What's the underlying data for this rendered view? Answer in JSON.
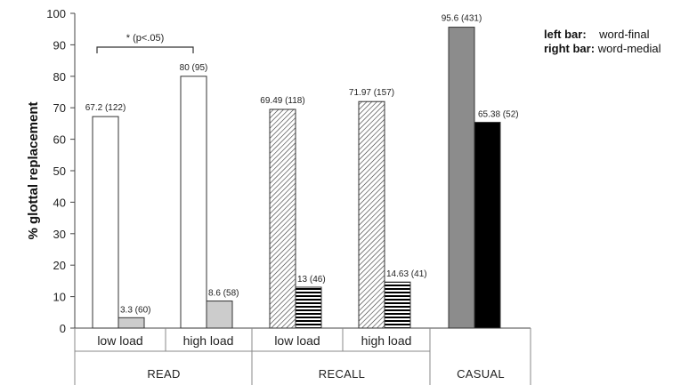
{
  "chart_data": {
    "type": "bar",
    "ylabel": "% glottal replacement",
    "ylim": [
      0,
      100
    ],
    "yticks": [
      0,
      10,
      20,
      30,
      40,
      50,
      60,
      70,
      80,
      90,
      100
    ],
    "groups": [
      {
        "label": "READ",
        "subgroups": [
          "low load",
          "high load"
        ]
      },
      {
        "label": "RECALL",
        "subgroups": [
          "low load",
          "high load"
        ]
      },
      {
        "label": "CASUAL",
        "subgroups": []
      }
    ],
    "categories": [
      "READ low load",
      "READ high load",
      "RECALL low load",
      "RECALL high load",
      "CASUAL"
    ],
    "series": [
      {
        "name": "word-final",
        "values": [
          67.2,
          80,
          69.49,
          71.97,
          95.6
        ],
        "labels": [
          "67.2 (122)",
          "80 (95)",
          "69.49 (118)",
          "71.97 (157)",
          "95.6 (431)"
        ]
      },
      {
        "name": "word-medial",
        "values": [
          3.3,
          8.6,
          13,
          14.63,
          65.38
        ],
        "labels": [
          "3.3 (60)",
          "8.6 (58)",
          "13 (46)",
          "14.63 (41)",
          "65.38 (52)"
        ]
      }
    ],
    "fills": {
      "READ": {
        "left": "#ffffff",
        "right": "#cccccc"
      },
      "RECALL": {
        "left": "diagonal-hatch",
        "right": "horizontal-stripes"
      },
      "CASUAL": {
        "left": "#8c8c8c",
        "right": "#000000"
      }
    },
    "annotation": {
      "text": "* (p<.05)",
      "between": [
        "READ low load",
        "READ high load"
      ]
    }
  },
  "legend": {
    "left_key": "left bar",
    "left_value": "word-final",
    "right_key": "right bar",
    "right_value": "word-medial"
  }
}
